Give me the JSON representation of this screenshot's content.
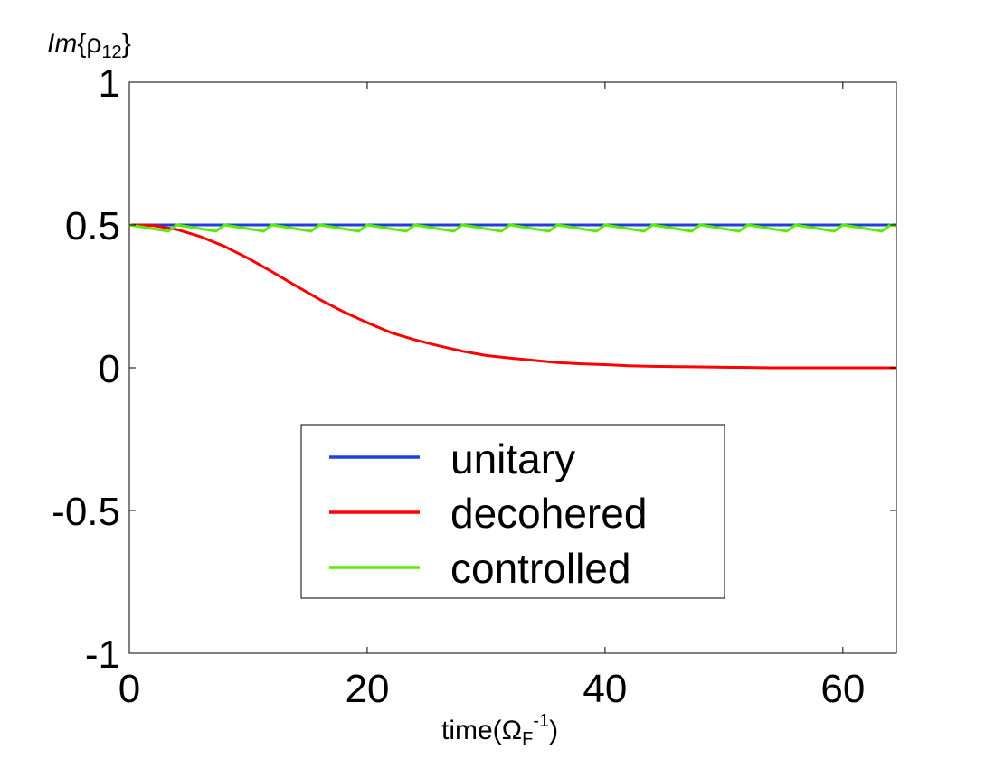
{
  "chart_data": {
    "type": "line",
    "ylabel": {
      "prefix": "Im",
      "brace_open": "{",
      "symbol": "ρ",
      "subscript": "12",
      "brace_close": "}"
    },
    "xlabel": {
      "prefix": "time(",
      "symbol": "Ω",
      "subscript": "F",
      "superscript": "-1",
      "suffix": ")"
    },
    "xlim": [
      0,
      64.5
    ],
    "ylim": [
      -1,
      1
    ],
    "x_ticks": [
      0,
      20,
      40,
      60
    ],
    "x_tick_labels": [
      "0",
      "20",
      "40",
      "60"
    ],
    "y_ticks": [
      1,
      0.5,
      0,
      -0.5,
      -1
    ],
    "y_tick_labels": [
      "1",
      "0.5",
      "0",
      "-0.5",
      "-1"
    ],
    "grid": false,
    "legend_position": "lower-center",
    "series": [
      {
        "name": "unitary",
        "color": "#1f3fe0",
        "x": [
          0,
          64.5
        ],
        "y": [
          0.5,
          0.5
        ]
      },
      {
        "name": "decohered",
        "color": "#ff0000",
        "x": [
          0,
          2,
          4,
          6,
          8,
          10,
          12,
          14,
          16,
          18,
          20,
          22,
          24,
          26,
          28,
          30,
          32,
          34,
          36,
          38,
          40,
          42,
          44,
          46,
          48,
          50,
          52,
          54,
          56,
          58,
          60,
          62,
          64.5
        ],
        "y": [
          0.5,
          0.498,
          0.484,
          0.459,
          0.425,
          0.383,
          0.336,
          0.287,
          0.239,
          0.196,
          0.158,
          0.123,
          0.098,
          0.077,
          0.058,
          0.043,
          0.034,
          0.026,
          0.018,
          0.014,
          0.011,
          0.007,
          0.005,
          0.004,
          0.003,
          0.002,
          0.001,
          0.0,
          0.0,
          0.0,
          0.0,
          0.0,
          0.0
        ]
      },
      {
        "name": "controlled",
        "color": "#55ee00",
        "period": 4.0,
        "trough": 0.478,
        "x_start": 0,
        "x_end": 64.5,
        "y_top": 0.5
      }
    ]
  }
}
